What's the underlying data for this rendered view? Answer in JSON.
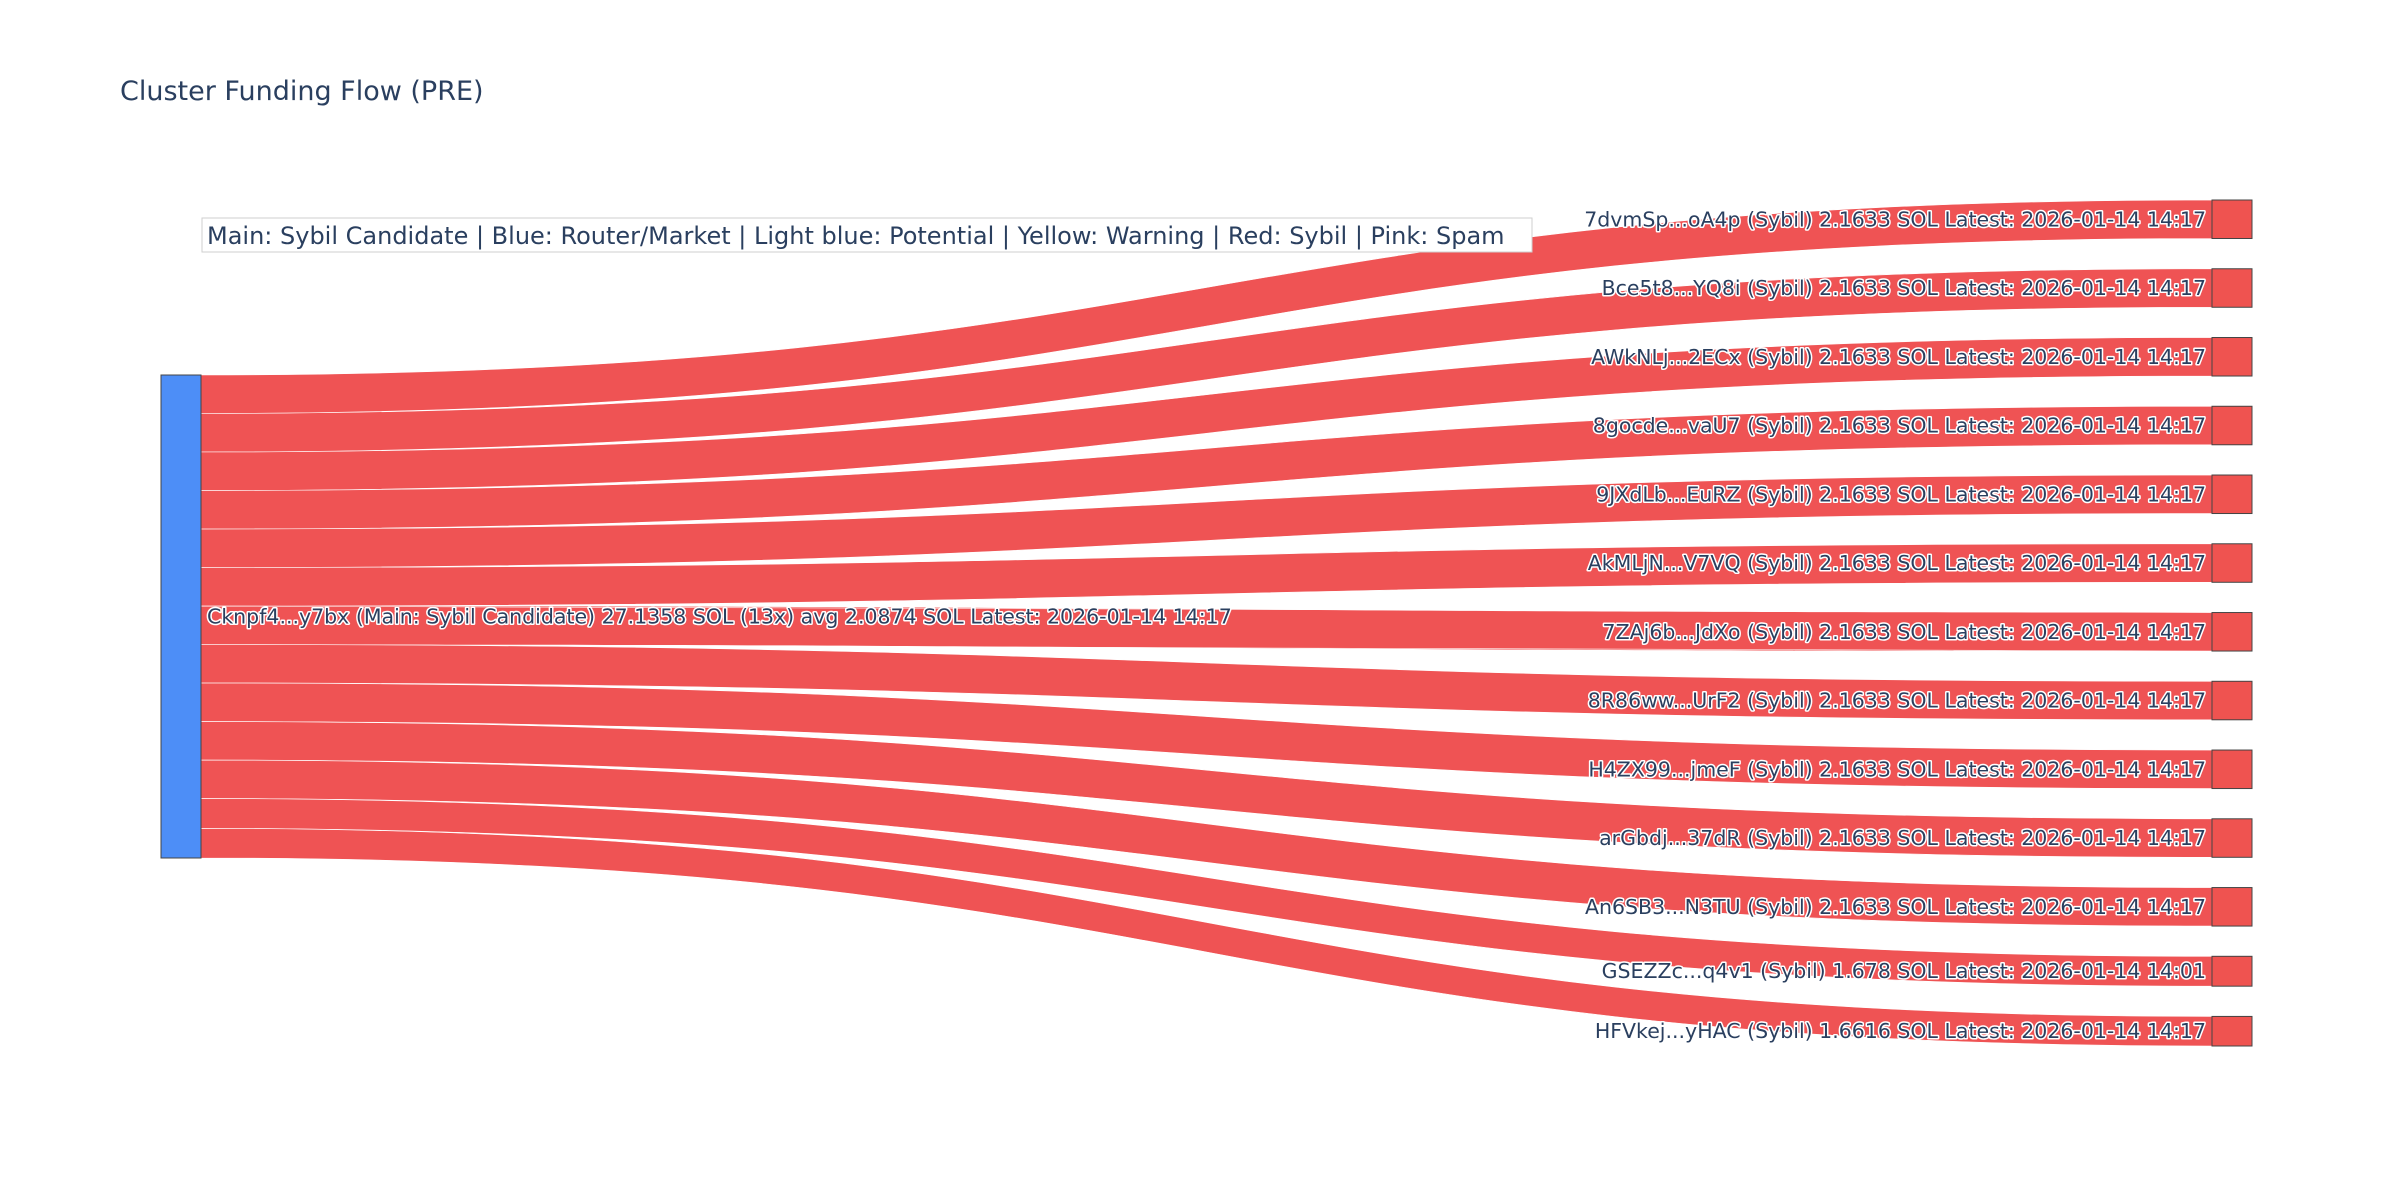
{
  "title": "Cluster Funding Flow (PRE)",
  "legend_annotation": "Main: Sybil Candidate  |  Blue: Router/Market | Light blue: Potential | Yellow: Warning | Red: Sybil | Pink: Spam",
  "colors": {
    "source_node": "#4d8ef7",
    "target_node": "#ef5350",
    "link": "#ef5354",
    "node_border": "#444444",
    "legend_border": "#cfcfcf"
  },
  "chart_data": {
    "type": "sankey",
    "title": "Cluster Funding Flow (PRE)",
    "source": {
      "id": "Cknpf4...y7bx",
      "label": "Cknpf4...y7bx (Main: Sybil Candidate) 27.1358 SOL (13x) avg 2.0874 SOL Latest: 2026-01-14 14:17",
      "value": 27.1358
    },
    "targets": [
      {
        "id": "7dvmSp...oA4p",
        "label": "7dvmSp...oA4p (Sybil) 2.1633 SOL Latest: 2026-01-14 14:17",
        "value": 2.1633
      },
      {
        "id": "Bce5t8...YQ8i",
        "label": "Bce5t8...YQ8i (Sybil) 2.1633 SOL Latest: 2026-01-14 14:17",
        "value": 2.1633
      },
      {
        "id": "AWkNLj...2ECx",
        "label": "AWkNLj...2ECx (Sybil) 2.1633 SOL Latest: 2026-01-14 14:17",
        "value": 2.1633
      },
      {
        "id": "8gocde...vaU7",
        "label": "8gocde...vaU7 (Sybil) 2.1633 SOL Latest: 2026-01-14 14:17",
        "value": 2.1633
      },
      {
        "id": "9JXdLb...EuRZ",
        "label": "9JXdLb...EuRZ (Sybil) 2.1633 SOL Latest: 2026-01-14 14:17",
        "value": 2.1633
      },
      {
        "id": "AkMLjN...V7VQ",
        "label": "AkMLjN...V7VQ (Sybil) 2.1633 SOL Latest: 2026-01-14 14:17",
        "value": 2.1633
      },
      {
        "id": "7ZAj6b...JdXo",
        "label": "7ZAj6b...JdXo (Sybil) 2.1633 SOL Latest: 2026-01-14 14:17",
        "value": 2.1633
      },
      {
        "id": "8R86ww...UrF2",
        "label": "8R86ww...UrF2 (Sybil) 2.1633 SOL Latest: 2026-01-14 14:17",
        "value": 2.1633
      },
      {
        "id": "H4ZX99...jmeF",
        "label": "H4ZX99...jmeF (Sybil) 2.1633 SOL Latest: 2026-01-14 14:17",
        "value": 2.1633
      },
      {
        "id": "arGbdj...37dR",
        "label": "arGbdj...37dR (Sybil) 2.1633 SOL Latest: 2026-01-14 14:17",
        "value": 2.1633
      },
      {
        "id": "An6SB3...N3TU",
        "label": "An6SB3...N3TU (Sybil) 2.1633 SOL Latest: 2026-01-14 14:17",
        "value": 2.1633
      },
      {
        "id": "GSEZZc...q4v1",
        "label": "GSEZZc...q4v1 (Sybil) 1.678 SOL Latest: 2026-01-14 14:01",
        "value": 1.678
      },
      {
        "id": "HFVkej...yHAC",
        "label": "HFVkej...yHAC (Sybil) 1.6616 SOL Latest: 2026-01-14 14:17",
        "value": 1.6616
      }
    ]
  }
}
